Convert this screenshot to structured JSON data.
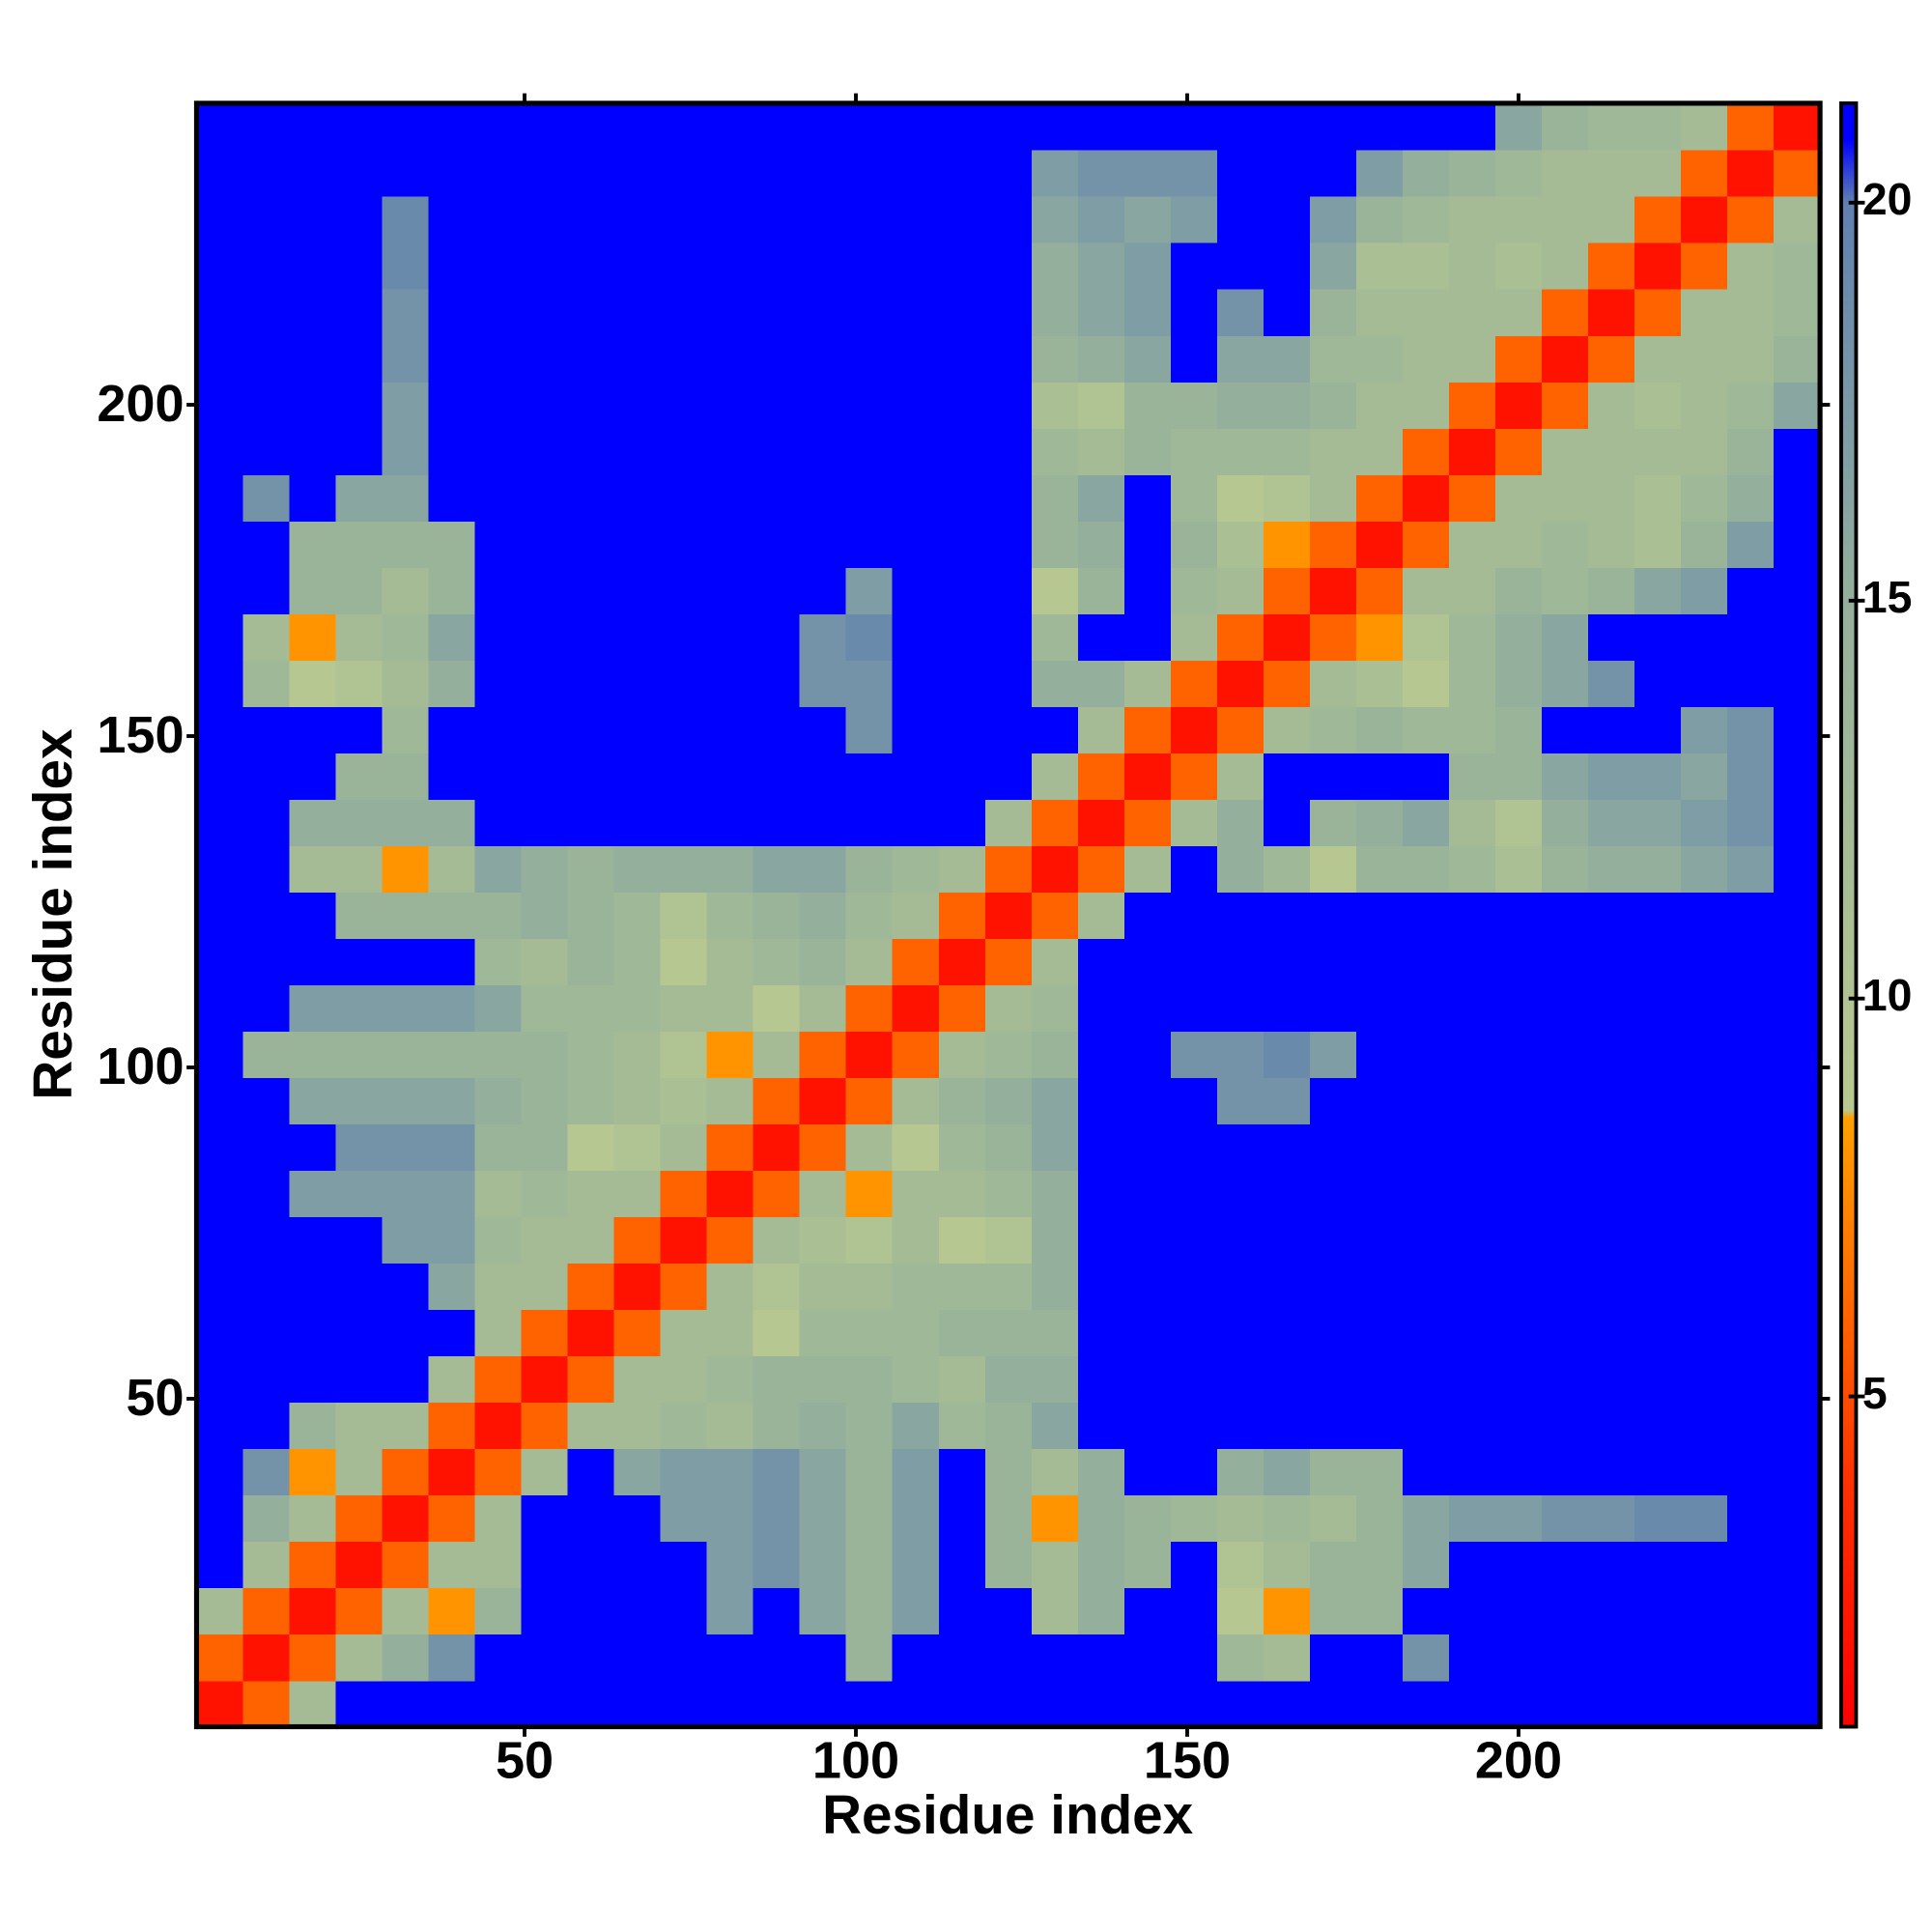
{
  "chart_data": {
    "type": "heatmap",
    "xlabel": "Residue index",
    "ylabel": "Residue index",
    "xlim": [
      0.5,
      245.5
    ],
    "ylim": [
      0.5,
      245.5
    ],
    "xticks": [
      50,
      100,
      150,
      200
    ],
    "yticks": [
      50,
      100,
      150,
      200
    ],
    "clim": [
      0.85,
      21.25
    ],
    "cticks": [
      5,
      10,
      15,
      20
    ],
    "colorscale": [
      {
        "value": 0.85,
        "color": "#ff0000"
      },
      {
        "value": 4,
        "color": "#ff3300"
      },
      {
        "value": 8.5,
        "color": "#ffa000"
      },
      {
        "value": 8.6,
        "color": "#b8c890"
      },
      {
        "value": 15,
        "color": "#94b09c"
      },
      {
        "value": 20,
        "color": "#6080b0"
      },
      {
        "value": 20.8,
        "color": "#0000ff"
      },
      {
        "value": 21.25,
        "color": "#0000ff"
      }
    ],
    "z": [
      [
        2,
        6,
        12,
        21,
        21,
        21,
        21,
        21,
        21,
        21,
        21,
        21,
        21,
        21,
        21,
        21,
        21,
        21,
        21,
        21,
        21,
        21,
        21,
        21,
        21,
        21,
        21,
        21,
        21,
        21,
        21,
        21,
        21,
        21,
        21
      ],
      [
        6,
        2,
        6,
        12,
        15,
        18,
        21,
        21,
        21,
        21,
        21,
        21,
        21,
        21,
        14,
        21,
        21,
        21,
        21,
        21,
        21,
        21,
        13,
        12,
        21,
        21,
        18,
        21,
        21,
        21,
        21,
        21,
        21,
        21,
        21
      ],
      [
        12,
        6,
        2,
        6,
        12,
        8,
        14,
        21,
        21,
        21,
        21,
        17,
        21,
        16,
        14,
        17,
        21,
        21,
        12,
        15,
        21,
        21,
        9,
        8,
        14,
        14,
        21,
        21,
        21,
        21,
        21,
        21,
        21,
        21,
        21
      ],
      [
        21,
        12,
        6,
        2,
        6,
        12,
        12,
        21,
        21,
        21,
        21,
        17,
        18,
        16,
        14,
        17,
        21,
        14,
        12,
        15,
        14,
        21,
        10,
        12,
        14,
        14,
        16,
        21,
        21,
        21,
        21,
        21,
        21,
        21,
        21
      ],
      [
        21,
        15,
        12,
        6,
        2,
        6,
        12,
        21,
        21,
        21,
        17,
        17,
        18,
        16,
        14,
        17,
        21,
        14,
        8,
        15,
        14,
        13,
        12,
        13,
        12,
        14,
        16,
        17,
        17,
        18,
        18,
        19,
        19,
        21,
        21
      ],
      [
        21,
        18,
        8,
        12,
        6,
        2,
        6,
        12,
        21,
        16,
        17,
        17,
        18,
        16,
        14,
        17,
        21,
        14,
        12,
        15,
        21,
        21,
        15,
        16,
        14,
        14,
        21,
        21,
        21,
        21,
        21,
        21,
        21,
        21,
        21
      ],
      [
        21,
        21,
        14,
        12,
        12,
        6,
        2,
        6,
        12,
        12,
        13,
        12,
        14,
        15,
        14,
        16,
        13,
        14,
        16,
        21,
        21,
        21,
        21,
        21,
        21,
        21,
        21,
        21,
        21,
        21,
        21,
        21,
        21,
        21,
        21
      ],
      [
        21,
        21,
        21,
        21,
        21,
        12,
        6,
        2,
        6,
        12,
        12,
        13,
        14,
        14,
        14,
        13,
        12,
        15,
        15,
        21,
        21,
        21,
        21,
        21,
        21,
        21,
        21,
        21,
        21,
        21,
        21,
        21,
        21,
        21,
        21
      ],
      [
        21,
        21,
        21,
        21,
        21,
        21,
        12,
        6,
        2,
        6,
        12,
        12,
        9,
        13,
        13,
        13,
        14,
        14,
        14,
        21,
        21,
        21,
        21,
        21,
        21,
        21,
        21,
        21,
        21,
        21,
        21,
        21,
        21,
        21,
        21
      ],
      [
        21,
        21,
        21,
        21,
        21,
        16,
        12,
        12,
        6,
        2,
        6,
        12,
        10,
        12,
        12,
        13,
        13,
        13,
        15,
        21,
        21,
        21,
        21,
        21,
        21,
        21,
        21,
        21,
        21,
        21,
        21,
        21,
        21,
        21,
        21
      ],
      [
        21,
        21,
        21,
        21,
        17,
        17,
        13,
        12,
        12,
        6,
        2,
        6,
        12,
        11,
        10,
        12,
        9,
        10,
        15,
        21,
        21,
        21,
        21,
        21,
        21,
        21,
        21,
        21,
        21,
        21,
        21,
        21,
        21,
        21,
        21
      ],
      [
        21,
        21,
        17,
        17,
        17,
        17,
        12,
        13,
        12,
        12,
        6,
        2,
        6,
        12,
        8,
        12,
        12,
        13,
        15,
        21,
        21,
        21,
        21,
        21,
        21,
        21,
        21,
        21,
        21,
        21,
        21,
        21,
        21,
        21,
        21
      ],
      [
        21,
        21,
        21,
        18,
        18,
        18,
        14,
        14,
        9,
        10,
        12,
        6,
        2,
        6,
        12,
        9,
        13,
        14,
        16,
        21,
        21,
        21,
        21,
        21,
        21,
        21,
        21,
        21,
        21,
        21,
        21,
        21,
        21,
        21,
        21
      ],
      [
        21,
        21,
        16,
        16,
        16,
        16,
        15,
        14,
        13,
        12,
        11,
        12,
        6,
        2,
        6,
        12,
        14,
        15,
        16,
        21,
        21,
        21,
        18,
        18,
        21,
        21,
        21,
        21,
        21,
        21,
        21,
        21,
        21,
        21,
        21
      ],
      [
        21,
        14,
        14,
        14,
        14,
        14,
        14,
        14,
        13,
        12,
        10,
        8,
        12,
        6,
        2,
        6,
        12,
        13,
        14,
        21,
        21,
        18,
        18,
        19,
        17,
        21,
        21,
        21,
        21,
        21,
        21,
        21,
        21,
        21,
        21
      ],
      [
        21,
        21,
        17,
        17,
        17,
        17,
        16,
        13,
        13,
        13,
        12,
        12,
        9,
        12,
        6,
        2,
        6,
        12,
        13,
        21,
        21,
        21,
        21,
        21,
        21,
        21,
        21,
        21,
        21,
        21,
        21,
        21,
        21,
        21,
        21
      ],
      [
        21,
        21,
        21,
        21,
        21,
        21,
        13,
        12,
        14,
        13,
        9,
        12,
        13,
        14,
        12,
        6,
        2,
        6,
        12,
        21,
        21,
        21,
        21,
        21,
        21,
        21,
        21,
        21,
        21,
        21,
        21,
        21,
        21,
        21,
        21
      ],
      [
        21,
        21,
        21,
        14,
        14,
        14,
        14,
        15,
        14,
        13,
        10,
        13,
        14,
        15,
        13,
        12,
        6,
        2,
        6,
        12,
        21,
        21,
        21,
        21,
        21,
        21,
        21,
        21,
        21,
        21,
        21,
        21,
        21,
        21,
        21
      ],
      [
        21,
        21,
        12,
        12,
        8,
        12,
        16,
        15,
        14,
        15,
        15,
        15,
        16,
        16,
        14,
        13,
        12,
        6,
        2,
        6,
        12,
        21,
        15,
        13,
        9,
        14,
        14,
        13,
        11,
        14,
        15,
        15,
        16,
        17,
        21
      ],
      [
        21,
        21,
        15,
        15,
        15,
        15,
        21,
        21,
        21,
        21,
        21,
        21,
        21,
        21,
        21,
        21,
        21,
        12,
        6,
        2,
        6,
        12,
        15,
        21,
        14,
        15,
        16,
        12,
        10,
        15,
        16,
        16,
        17,
        18,
        21
      ],
      [
        21,
        21,
        21,
        14,
        14,
        21,
        21,
        21,
        21,
        21,
        21,
        21,
        21,
        21,
        21,
        21,
        21,
        21,
        12,
        6,
        2,
        6,
        12,
        21,
        21,
        21,
        21,
        14,
        14,
        16,
        17,
        17,
        16,
        18,
        21
      ],
      [
        21,
        21,
        21,
        21,
        13,
        21,
        21,
        21,
        21,
        21,
        21,
        21,
        21,
        21,
        18,
        21,
        21,
        21,
        21,
        12,
        6,
        2,
        6,
        12,
        13,
        14,
        13,
        13,
        14,
        21,
        21,
        21,
        17,
        18,
        21
      ],
      [
        21,
        13,
        9,
        10,
        12,
        15,
        21,
        21,
        21,
        21,
        21,
        21,
        21,
        18,
        18,
        21,
        21,
        21,
        15,
        15,
        12,
        6,
        2,
        6,
        12,
        11,
        9,
        13,
        15,
        16,
        18,
        21,
        21,
        21,
        21
      ],
      [
        21,
        12,
        8,
        12,
        13,
        16,
        21,
        21,
        21,
        21,
        21,
        21,
        21,
        18,
        19,
        21,
        21,
        21,
        13,
        21,
        21,
        12,
        6,
        2,
        6,
        8,
        10,
        13,
        15,
        16,
        21,
        21,
        21,
        21,
        21
      ],
      [
        21,
        21,
        14,
        14,
        12,
        14,
        21,
        21,
        21,
        21,
        21,
        21,
        21,
        21,
        17,
        21,
        21,
        21,
        9,
        14,
        21,
        13,
        12,
        6,
        2,
        6,
        12,
        12,
        14,
        13,
        14,
        16,
        17,
        21,
        21
      ],
      [
        21,
        21,
        14,
        14,
        14,
        14,
        21,
        21,
        21,
        21,
        21,
        21,
        21,
        21,
        21,
        21,
        21,
        21,
        14,
        15,
        21,
        14,
        11,
        8,
        6,
        2,
        6,
        12,
        12,
        13,
        12,
        11,
        14,
        17,
        21
      ],
      [
        21,
        18,
        21,
        16,
        16,
        21,
        21,
        21,
        21,
        21,
        21,
        21,
        21,
        21,
        21,
        21,
        21,
        21,
        14,
        16,
        21,
        13,
        9,
        10,
        12,
        6,
        2,
        6,
        12,
        12,
        12,
        11,
        13,
        15,
        21
      ],
      [
        21,
        21,
        21,
        21,
        17,
        21,
        21,
        21,
        21,
        21,
        21,
        21,
        21,
        21,
        21,
        21,
        21,
        21,
        13,
        12,
        14,
        13,
        13,
        13,
        12,
        12,
        6,
        2,
        6,
        12,
        12,
        12,
        12,
        14,
        21
      ],
      [
        21,
        21,
        21,
        21,
        17,
        21,
        21,
        21,
        21,
        21,
        21,
        21,
        21,
        21,
        21,
        21,
        21,
        21,
        11,
        10,
        14,
        14,
        15,
        15,
        14,
        12,
        12,
        6,
        2,
        6,
        12,
        11,
        12,
        13,
        16
      ],
      [
        21,
        21,
        21,
        21,
        18,
        21,
        21,
        21,
        21,
        21,
        21,
        21,
        21,
        21,
        21,
        21,
        21,
        21,
        14,
        15,
        16,
        21,
        16,
        16,
        13,
        13,
        12,
        12,
        6,
        2,
        6,
        12,
        12,
        12,
        14
      ],
      [
        21,
        21,
        21,
        21,
        18,
        21,
        21,
        21,
        21,
        21,
        21,
        21,
        21,
        21,
        21,
        21,
        21,
        21,
        15,
        16,
        17,
        21,
        18,
        21,
        14,
        12,
        12,
        12,
        12,
        6,
        2,
        6,
        12,
        12,
        13
      ],
      [
        21,
        21,
        21,
        21,
        19,
        21,
        21,
        21,
        21,
        21,
        21,
        21,
        21,
        21,
        21,
        21,
        21,
        21,
        15,
        16,
        17,
        21,
        21,
        21,
        16,
        11,
        11,
        12,
        11,
        12,
        6,
        2,
        6,
        12,
        13
      ],
      [
        21,
        21,
        21,
        21,
        19,
        21,
        21,
        21,
        21,
        21,
        21,
        21,
        21,
        21,
        21,
        21,
        21,
        21,
        16,
        17,
        16,
        17,
        21,
        21,
        17,
        14,
        13,
        12,
        12,
        12,
        12,
        6,
        2,
        6,
        12
      ],
      [
        21,
        21,
        21,
        21,
        21,
        21,
        21,
        21,
        21,
        21,
        21,
        21,
        21,
        21,
        21,
        21,
        21,
        21,
        17,
        18,
        18,
        18,
        21,
        21,
        21,
        17,
        15,
        14,
        13,
        12,
        12,
        12,
        6,
        2,
        6
      ],
      [
        21,
        21,
        21,
        21,
        21,
        21,
        21,
        21,
        21,
        21,
        21,
        21,
        21,
        21,
        21,
        21,
        21,
        21,
        21,
        21,
        21,
        21,
        21,
        21,
        21,
        21,
        21,
        21,
        16,
        14,
        13,
        13,
        12,
        6,
        2
      ]
    ]
  }
}
